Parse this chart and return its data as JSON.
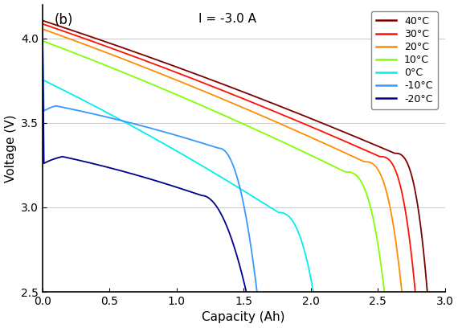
{
  "title_annotation": "(b)",
  "current_label": "I = -3.0 A",
  "xlabel": "Capacity (Ah)",
  "ylabel": "Voltage (V)",
  "xlim": [
    0,
    3
  ],
  "ylim": [
    2.5,
    4.2
  ],
  "yticks": [
    2.5,
    3.0,
    3.5,
    4.0
  ],
  "xticks": [
    0,
    0.5,
    1.0,
    1.5,
    2.0,
    2.5,
    3.0
  ],
  "temperatures": [
    "40°C",
    "30°C",
    "20°C",
    "10°C",
    "0°C",
    "-10°C",
    "-20°C"
  ],
  "colors": [
    "#7B0000",
    "#FF1000",
    "#FF8C00",
    "#80FF00",
    "#00EEEE",
    "#3399FF",
    "#00008B"
  ],
  "linewidths": [
    1.3,
    1.3,
    1.3,
    1.3,
    1.3,
    1.3,
    1.3
  ],
  "background_color": "#ffffff",
  "grid_color": "#cccccc"
}
